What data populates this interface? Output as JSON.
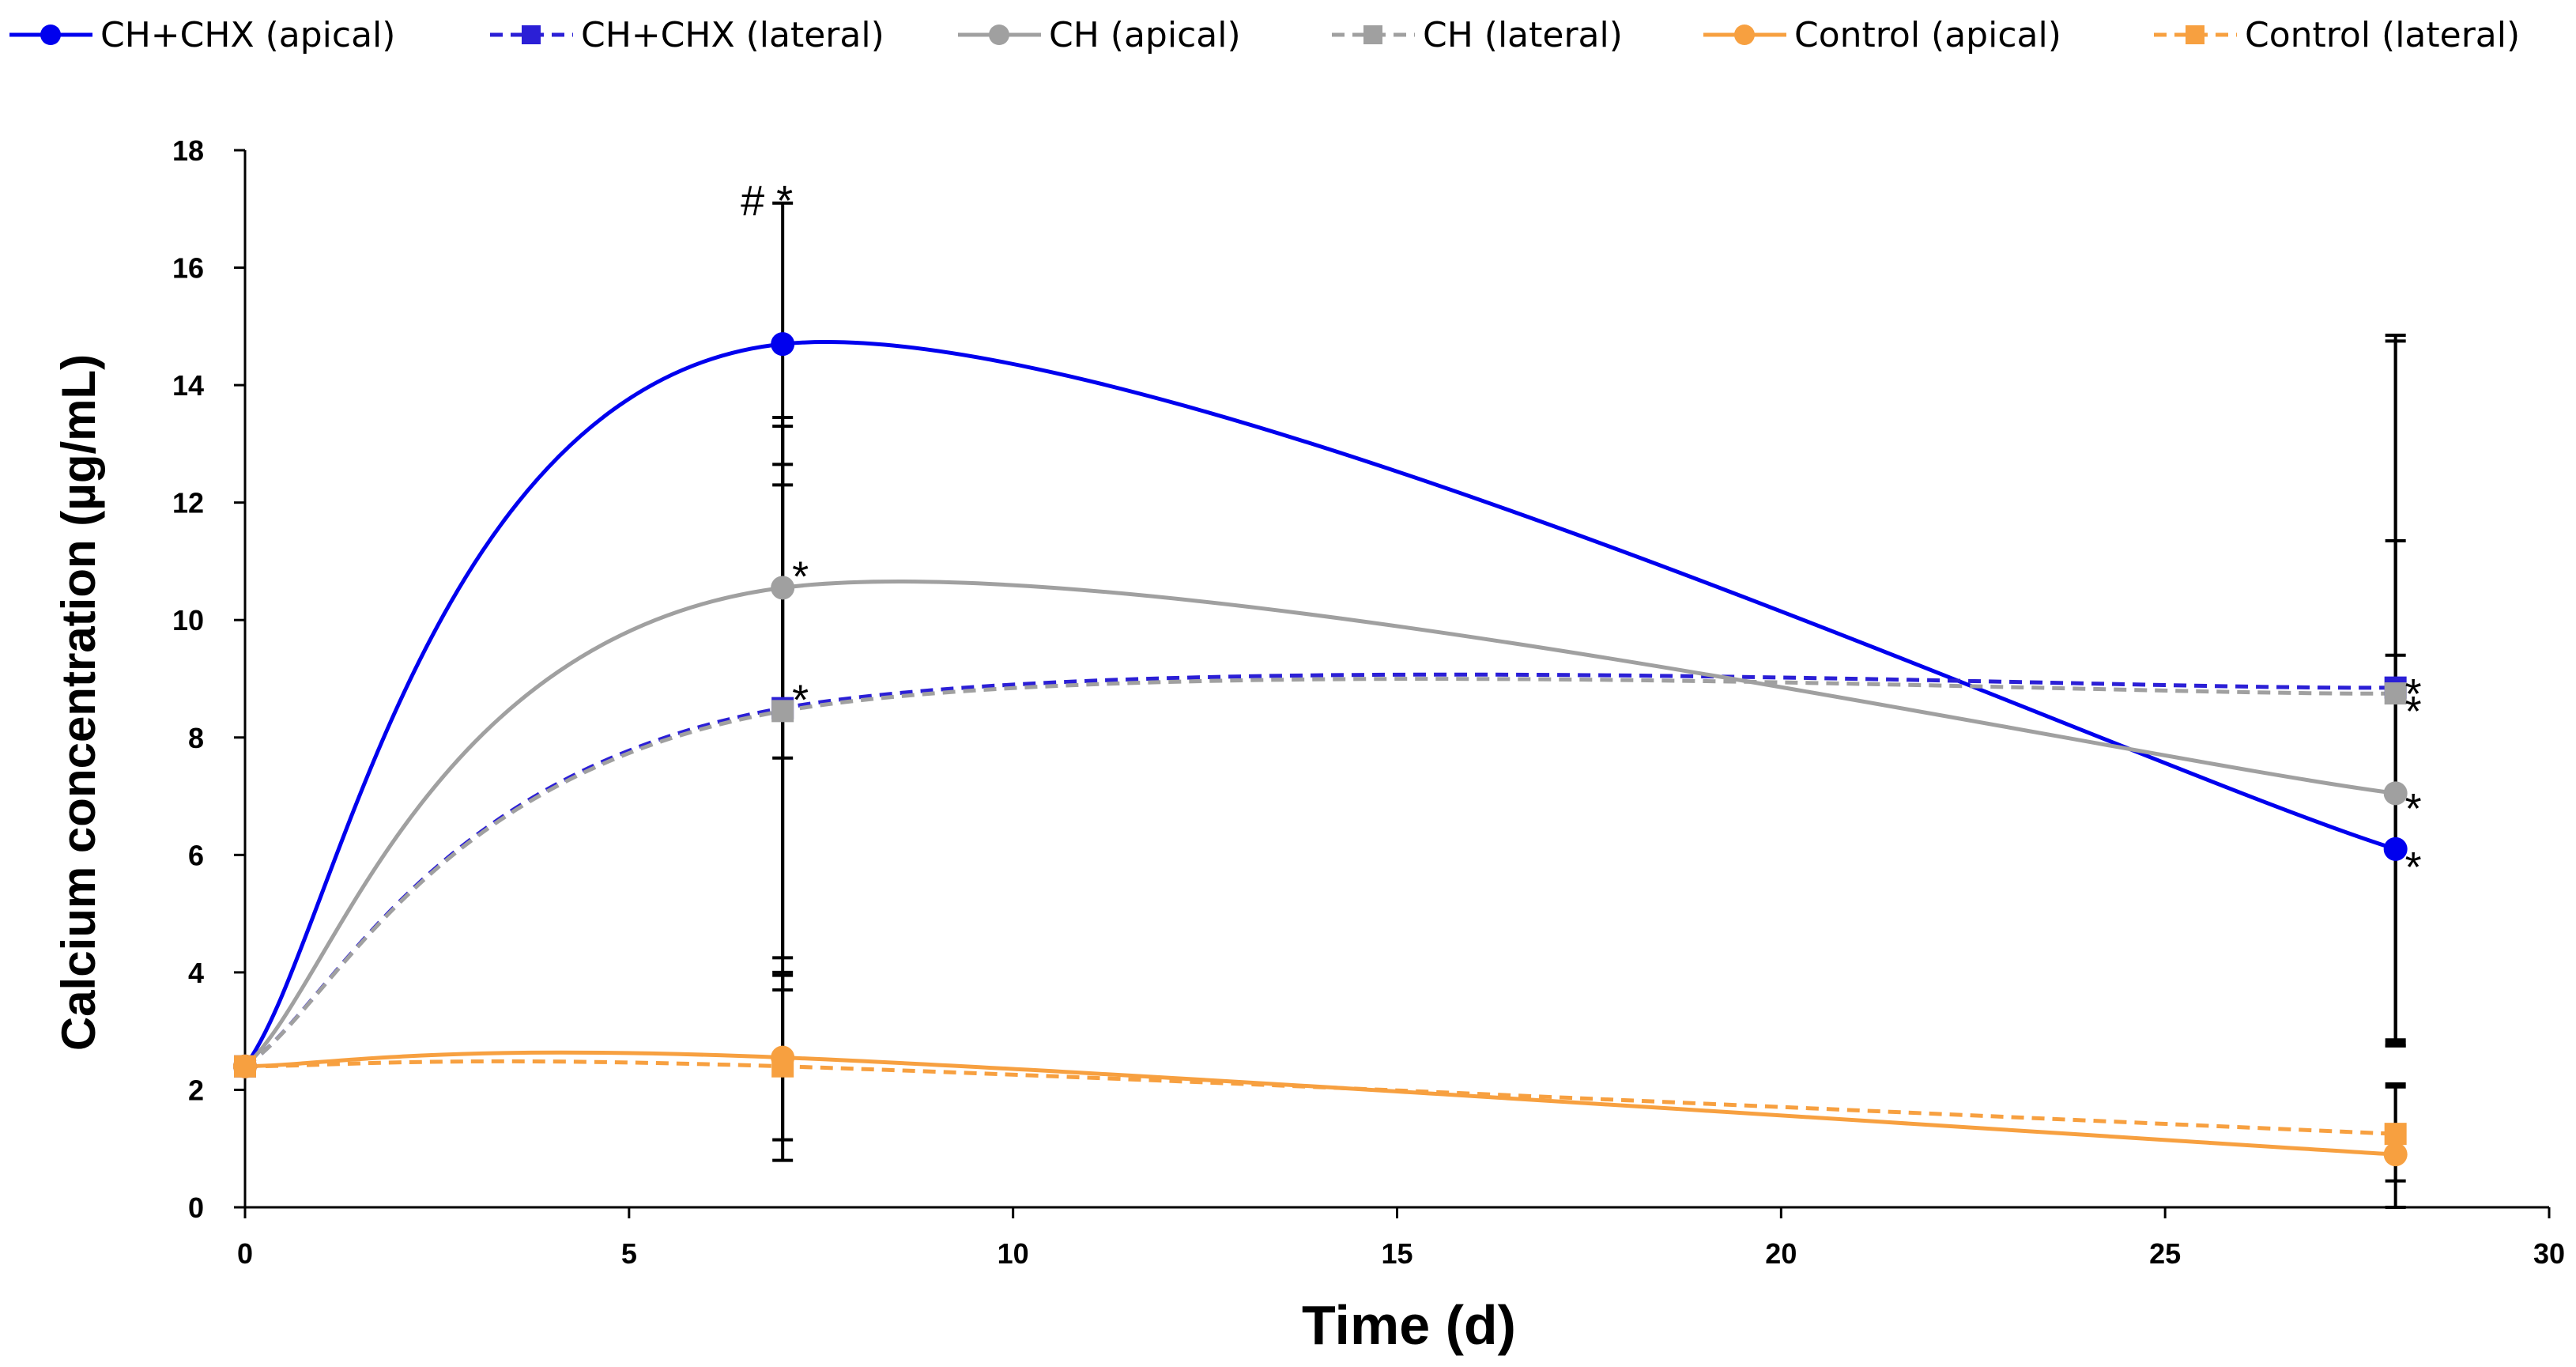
{
  "chart_data": {
    "type": "line",
    "title": "",
    "xlabel": "Time (d)",
    "ylabel": "Calcium concentration (µg/mL)",
    "xlim": [
      0,
      30
    ],
    "ylim": [
      0,
      18
    ],
    "xticks": [
      0,
      5,
      10,
      15,
      20,
      25,
      30
    ],
    "yticks": [
      0,
      2,
      4,
      6,
      8,
      10,
      12,
      14,
      16,
      18
    ],
    "grid": false,
    "legend_position": "top",
    "x": [
      0,
      7,
      28
    ],
    "series": [
      {
        "name": "CH+CHX (apical)",
        "color": "#0000ee",
        "dash": "solid",
        "marker": "circle",
        "values": [
          2.4,
          14.7,
          6.1
        ],
        "errors": [
          0,
          2.4,
          3.3
        ]
      },
      {
        "name": "CH+CHX (lateral)",
        "color": "#2b1fd6",
        "dash": "dashed",
        "marker": "square",
        "values": [
          2.4,
          8.5,
          8.85
        ],
        "errors": [
          0,
          4.8,
          6.0
        ]
      },
      {
        "name": "CH (apical)",
        "color": "#a0a0a0",
        "dash": "solid",
        "marker": "circle",
        "values": [
          2.4,
          10.55,
          7.05
        ],
        "errors": [
          0,
          2.9,
          4.3
        ]
      },
      {
        "name": "CH (lateral)",
        "color": "#a0a0a0",
        "dash": "dashed",
        "marker": "square",
        "values": [
          2.4,
          8.45,
          8.75
        ],
        "errors": [
          0,
          4.2,
          6.0
        ]
      },
      {
        "name": "Control (apical)",
        "color": "#f7a040",
        "dash": "solid",
        "marker": "circle",
        "values": [
          2.4,
          2.55,
          0.9
        ],
        "errors": [
          0,
          1.4,
          1.2
        ]
      },
      {
        "name": "Control (lateral)",
        "color": "#f7a040",
        "dash": "dashed",
        "marker": "square",
        "values": [
          2.4,
          2.4,
          1.25
        ],
        "errors": [
          0,
          1.6,
          0.8
        ]
      }
    ],
    "annotations": [
      {
        "text": "# *",
        "x": 7,
        "y": 17.3
      },
      {
        "text": "*",
        "x": 7,
        "y": 10.9
      },
      {
        "text": "*",
        "x": 7,
        "y": 8.8
      },
      {
        "text": "*",
        "x": 28,
        "y": 8.9
      },
      {
        "text": "*",
        "x": 28,
        "y": 8.6
      },
      {
        "text": "*",
        "x": 28,
        "y": 6.95
      },
      {
        "text": "*",
        "x": 28,
        "y": 5.95
      }
    ]
  }
}
